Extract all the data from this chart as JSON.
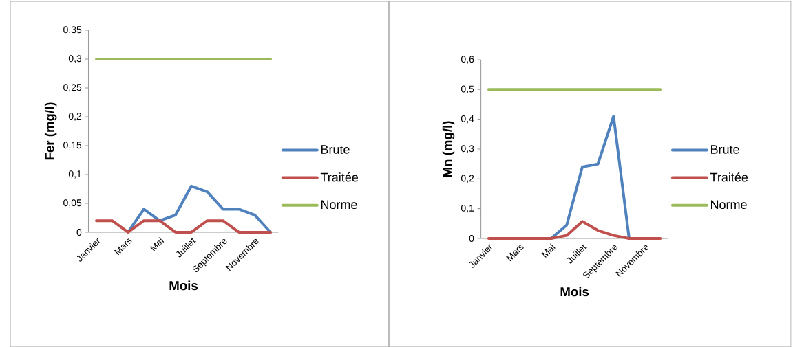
{
  "chart_data": [
    {
      "type": "line",
      "xlabel": "Mois",
      "ylabel": "Fer (mg/l)",
      "categories": [
        "Janvier",
        null,
        "Mars",
        null,
        "Mai",
        null,
        "Juillet",
        null,
        "Septembre",
        null,
        "Novembre",
        null
      ],
      "series": [
        {
          "name": "Brute",
          "color": "#4f81bd",
          "values": [
            null,
            null,
            0,
            0.04,
            0.02,
            0.03,
            0.08,
            0.07,
            0.04,
            0.04,
            0.03,
            0
          ]
        },
        {
          "name": "Traitée",
          "color": "#c0504d",
          "values": [
            0.02,
            0.02,
            0,
            0.02,
            0.02,
            0,
            0,
            0.02,
            0.02,
            0,
            0,
            0
          ]
        },
        {
          "name": "Norme",
          "color": "#9bbb59",
          "values": [
            0.3,
            0.3,
            0.3,
            0.3,
            0.3,
            0.3,
            0.3,
            0.3,
            0.3,
            0.3,
            0.3,
            0.3
          ]
        }
      ],
      "ylim": [
        0,
        0.35
      ],
      "yticks": [
        0,
        {
          "value": 0.05,
          "label": "0,05"
        },
        {
          "value": 0.1,
          "label": "0,1"
        },
        {
          "value": 0.15,
          "label": "0,15"
        },
        {
          "value": 0.2,
          "label": "0,2"
        },
        {
          "value": 0.25,
          "label": "0,25"
        },
        {
          "value": 0.3,
          "label": "0,3"
        },
        {
          "value": 0.35,
          "label": "0,35"
        }
      ],
      "legend": "right",
      "marker": "none",
      "line_style": "solid",
      "grid": false
    },
    {
      "type": "line",
      "xlabel": "Mois",
      "ylabel": "Mn (mg/l)",
      "categories": [
        "Janvier",
        null,
        "Mars",
        null,
        "Mai",
        null,
        "Juillet",
        null,
        "Septembre",
        null,
        "Novembre",
        null
      ],
      "series": [
        {
          "name": "Brute",
          "color": "#4f81bd",
          "values": [
            null,
            null,
            null,
            null,
            0,
            0.045,
            0.24,
            0.25,
            0.41,
            0,
            null,
            null
          ]
        },
        {
          "name": "Traitée",
          "color": "#c0504d",
          "values": [
            0,
            0,
            0,
            0,
            0,
            0.01,
            0.057,
            0.027,
            0.01,
            0,
            0,
            0
          ]
        },
        {
          "name": "Norme",
          "color": "#9bbb59",
          "values": [
            0.5,
            0.5,
            0.5,
            0.5,
            0.5,
            0.5,
            0.5,
            0.5,
            0.5,
            0.5,
            0.5,
            0.5
          ]
        }
      ],
      "ylim": [
        0,
        0.6
      ],
      "yticks": [
        0,
        {
          "value": 0.1,
          "label": "0,1"
        },
        {
          "value": 0.2,
          "label": "0,2"
        },
        {
          "value": 0.3,
          "label": "0,3"
        },
        {
          "value": 0.4,
          "label": "0,4"
        },
        {
          "value": 0.5,
          "label": "0,5"
        },
        {
          "value": 0.6,
          "label": "0,6"
        }
      ],
      "legend": "right",
      "marker": "none",
      "line_style": "solid",
      "grid": false
    }
  ]
}
